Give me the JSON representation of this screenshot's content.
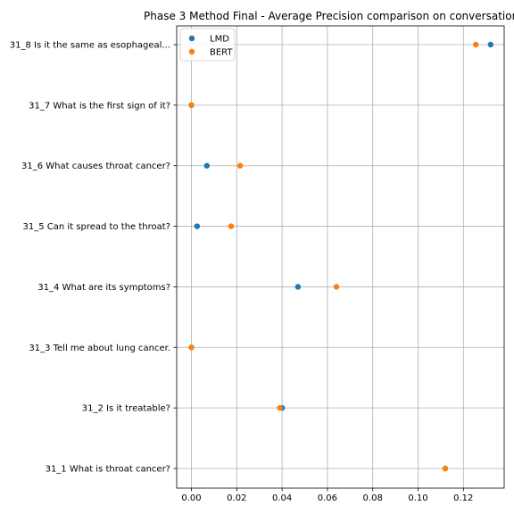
{
  "chart_data": {
    "type": "scatter",
    "title": "Phase 3 Method Final - Average Precision comparison on conversation",
    "xlabel": "",
    "ylabel": "",
    "xlim": [
      -0.0065,
      0.138
    ],
    "x_ticks": [
      0.0,
      0.02,
      0.04,
      0.06,
      0.08,
      0.1,
      0.12
    ],
    "x_tick_labels": [
      "0.00",
      "0.02",
      "0.04",
      "0.06",
      "0.08",
      "0.10",
      "0.12"
    ],
    "grid": true,
    "legend_position": "top-left",
    "categories": [
      "31_1 What is throat cancer?",
      "31_2 Is it treatable?",
      "31_3 Tell me about lung cancer.",
      "31_4 What are its symptoms?",
      "31_5 Can it spread to the throat?",
      "31_6 What causes throat cancer?",
      "31_7 What is the first sign of it?",
      "31_8 Is it the same as esophageal..."
    ],
    "series": [
      {
        "name": "LMD",
        "color": "#1f77b4",
        "values": [
          0.112,
          0.04,
          0.0,
          0.047,
          0.0025,
          0.0068,
          0.0,
          0.132
        ]
      },
      {
        "name": "BERT",
        "color": "#ff7f0e",
        "values": [
          0.112,
          0.039,
          0.0,
          0.064,
          0.0175,
          0.0215,
          0.0,
          0.1255
        ]
      }
    ]
  }
}
